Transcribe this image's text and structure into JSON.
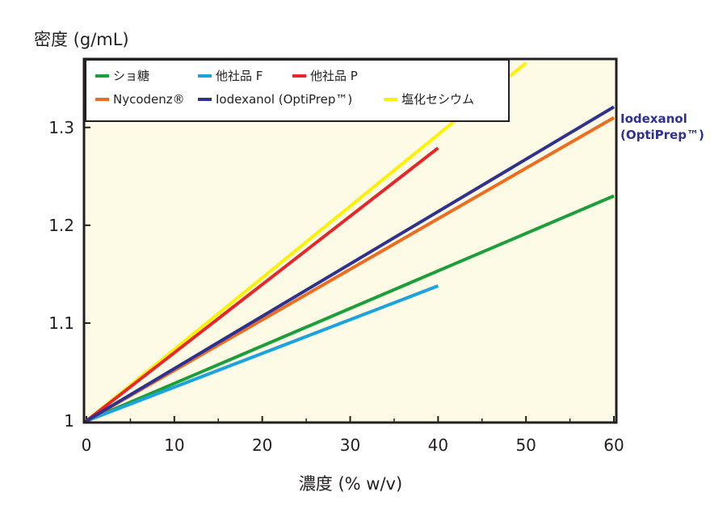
{
  "chart_data": {
    "type": "line",
    "ylabel": "密度 (g/mL)",
    "xlabel": "濃度 (% w/v)",
    "xlim": [
      0,
      60
    ],
    "ylim": [
      1.0,
      1.37
    ],
    "x_ticks": [
      0,
      10,
      20,
      30,
      40,
      50,
      60
    ],
    "y_ticks": [
      1,
      1.1,
      1.2,
      1.3
    ],
    "y_tick_labels": [
      "1",
      "1.1",
      "1.2",
      "1.3"
    ],
    "grid": false,
    "plot_background": "#fdfbe6",
    "legend_position": "top-left",
    "series": [
      {
        "name": "ショ糖",
        "color": "#1b9f3a",
        "x": [
          0,
          60
        ],
        "y": [
          1.0,
          1.23
        ]
      },
      {
        "name": "他社品 F",
        "color": "#1aa3e0",
        "x": [
          0,
          40
        ],
        "y": [
          1.0,
          1.138
        ]
      },
      {
        "name": "他社品 P",
        "color": "#e8262a",
        "x": [
          0,
          40
        ],
        "y": [
          1.0,
          1.279
        ]
      },
      {
        "name": "Nycodenz®",
        "color": "#ef6c1f",
        "x": [
          0,
          60
        ],
        "y": [
          1.0,
          1.31
        ]
      },
      {
        "name": "Iodexanol (OptiPrep™)",
        "color": "#2e3192",
        "x": [
          0,
          60
        ],
        "y": [
          1.0,
          1.321
        ]
      },
      {
        "name": "塩化セシウム",
        "color": "#fff200",
        "x": [
          0,
          50
        ],
        "y": [
          1.0,
          1.366
        ]
      }
    ],
    "annotation": {
      "line1": "Iodexanol",
      "line2": "(OptiPrep™)",
      "color": "#2e3192"
    }
  }
}
